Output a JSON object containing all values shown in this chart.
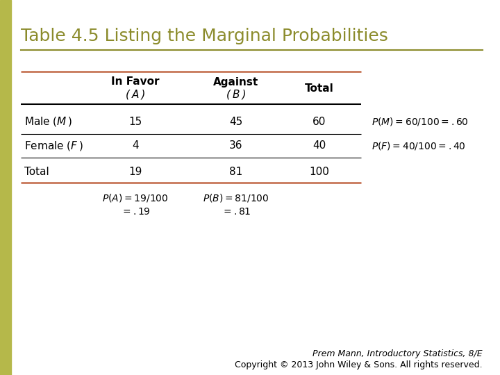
{
  "title": "Table 4.5 Listing the Marginal Probabilities",
  "title_color": "#8B8B2B",
  "bg_color": "#FFFFFF",
  "left_panel_bg": "#B5B84A",
  "table_line_color_outer": "#C8785A",
  "table_line_color_inner": "#000000",
  "separator_line_color": "#8B8B2B",
  "footer_line1": "Prem Mann, Introductory Statistics, 8/E",
  "footer_line2": "Copyright © 2013 John Wiley & Sons. All rights reserved."
}
